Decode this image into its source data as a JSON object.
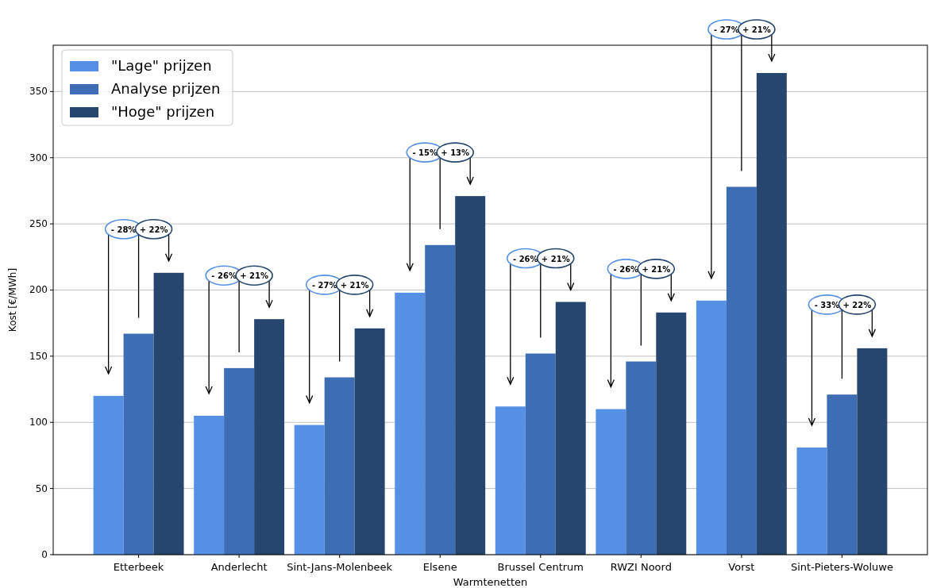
{
  "chart_data": {
    "type": "bar",
    "xlabel": "Warmtenetten",
    "ylabel": "Kost [€/MWh]",
    "categories": [
      "Etterbeek",
      "Anderlecht",
      "Sint-Jans-Molenbeek",
      "Elsene",
      "Brussel Centrum",
      "RWZI Noord",
      "Vorst",
      "Sint-Pieters-Woluwe"
    ],
    "series": [
      {
        "name": "\"Lage\" prijzen",
        "color": "#5590e5",
        "values": [
          120,
          105,
          98,
          198,
          112,
          110,
          192,
          81
        ]
      },
      {
        "name": "Analyse prijzen",
        "color": "#3d6db5",
        "values": [
          167,
          141,
          134,
          234,
          152,
          146,
          278,
          121
        ]
      },
      {
        "name": "\"Hoge\" prijzen",
        "color": "#27466f",
        "values": [
          213,
          178,
          171,
          271,
          191,
          183,
          364,
          156
        ]
      }
    ],
    "ylim": [
      0,
      385
    ],
    "yticks": [
      0,
      50,
      100,
      150,
      200,
      250,
      300,
      350
    ],
    "grid": "y",
    "legend": "top left",
    "annotations": [
      "- 28%",
      "+ 22%",
      "- 26%",
      "+ 21%",
      "- 27%",
      "+ 21%",
      "- 15%",
      "+ 13%",
      "- 26%",
      "+ 21%",
      "- 26%",
      "+ 21%",
      "- 27%",
      "+ 21%",
      "- 33%",
      "+ 22%"
    ]
  }
}
